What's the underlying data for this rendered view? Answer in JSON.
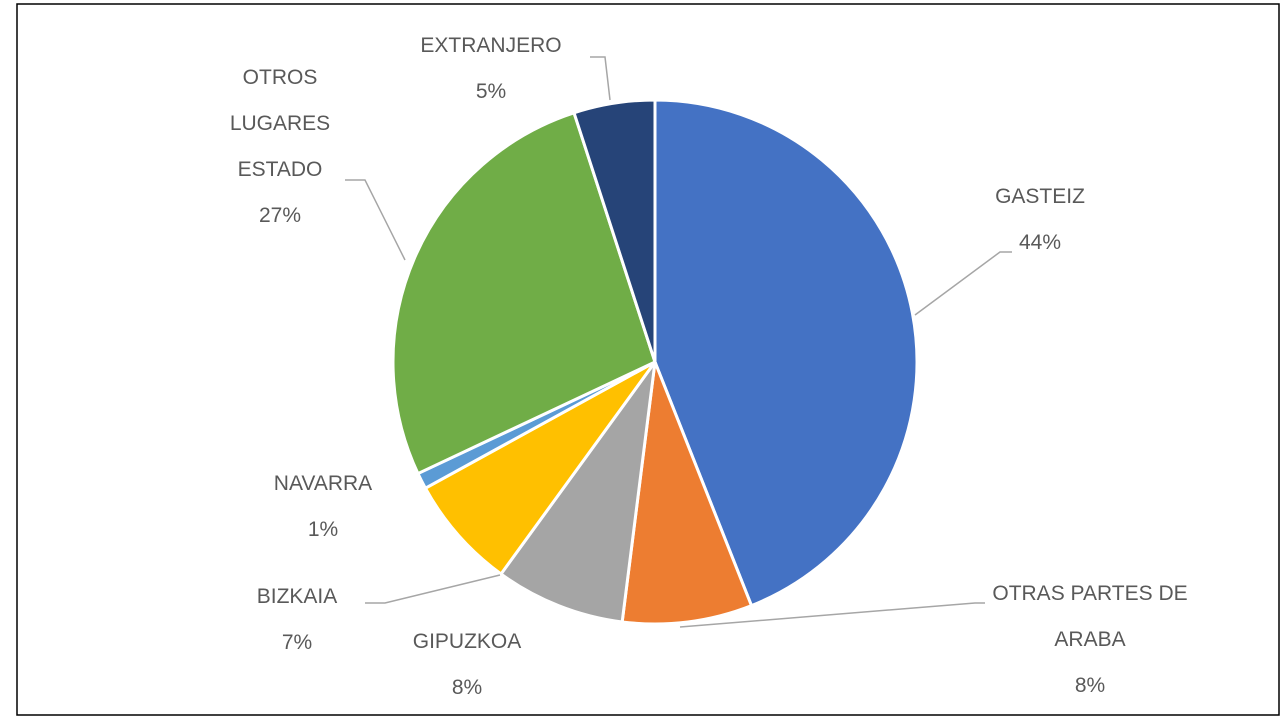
{
  "chart_data": {
    "type": "pie",
    "categories": [
      "GASTEIZ",
      "OTRAS PARTES DE ARABA",
      "GIPUZKOA",
      "BIZKAIA",
      "NAVARRA",
      "OTROS LUGARES ESTADO",
      "EXTRANJERO"
    ],
    "values": [
      44,
      8,
      8,
      7,
      1,
      27,
      5
    ],
    "value_labels": [
      "44%",
      "8%",
      "8%",
      "7%",
      "1%",
      "27%",
      "5%"
    ],
    "colors": [
      "#4472c4",
      "#ed7d31",
      "#a5a5a5",
      "#ffc000",
      "#5b9bd5",
      "#70ad47",
      "#264478"
    ]
  }
}
